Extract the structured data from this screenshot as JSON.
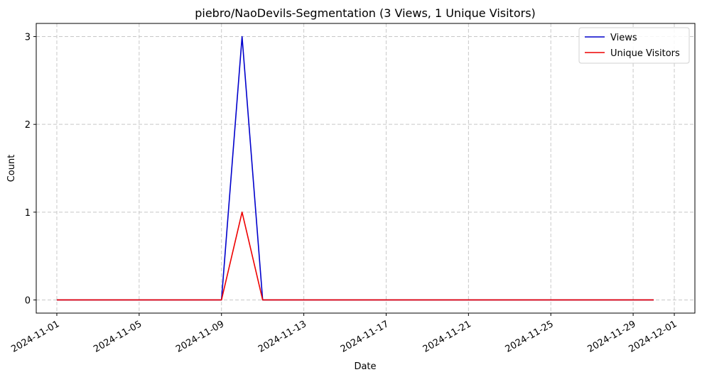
{
  "chart_data": {
    "type": "line",
    "title": "piebro/NaoDevils-Segmentation (3 Views, 1 Unique Visitors)",
    "xlabel": "Date",
    "ylabel": "Count",
    "x": [
      "2024-11-01",
      "2024-11-02",
      "2024-11-03",
      "2024-11-04",
      "2024-11-05",
      "2024-11-06",
      "2024-11-07",
      "2024-11-08",
      "2024-11-09",
      "2024-11-10",
      "2024-11-11",
      "2024-11-12",
      "2024-11-13",
      "2024-11-14",
      "2024-11-15",
      "2024-11-16",
      "2024-11-17",
      "2024-11-18",
      "2024-11-19",
      "2024-11-20",
      "2024-11-21",
      "2024-11-22",
      "2024-11-23",
      "2024-11-24",
      "2024-11-25",
      "2024-11-26",
      "2024-11-27",
      "2024-11-28",
      "2024-11-29",
      "2024-11-30"
    ],
    "series": [
      {
        "name": "Views",
        "color": "#0000cc",
        "values": [
          0,
          0,
          0,
          0,
          0,
          0,
          0,
          0,
          0,
          3,
          0,
          0,
          0,
          0,
          0,
          0,
          0,
          0,
          0,
          0,
          0,
          0,
          0,
          0,
          0,
          0,
          0,
          0,
          0,
          0
        ]
      },
      {
        "name": "Unique Visitors",
        "color": "#ee0000",
        "values": [
          0,
          0,
          0,
          0,
          0,
          0,
          0,
          0,
          0,
          1,
          0,
          0,
          0,
          0,
          0,
          0,
          0,
          0,
          0,
          0,
          0,
          0,
          0,
          0,
          0,
          0,
          0,
          0,
          0,
          0
        ]
      }
    ],
    "xticks": [
      "2024-11-01",
      "2024-11-05",
      "2024-11-09",
      "2024-11-13",
      "2024-11-17",
      "2024-11-21",
      "2024-11-25",
      "2024-11-29",
      "2024-12-01"
    ],
    "yticks": [
      "0",
      "1",
      "2",
      "3"
    ],
    "xlim": [
      "2024-10-31",
      "2024-12-02"
    ],
    "ylim": [
      -0.15,
      3.15
    ],
    "grid": true,
    "legend": "top-right"
  }
}
